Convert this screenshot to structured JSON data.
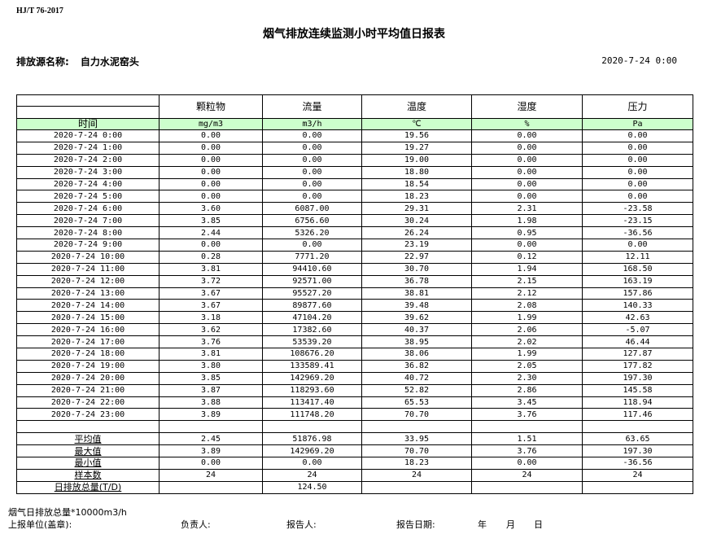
{
  "standard": "HJ/T  76-2017",
  "title": "烟气排放连续监测小时平均值日报表",
  "source_label": "排放源名称:",
  "source_name": "自力水泥窑头",
  "report_date": "2020-7-24 0:00",
  "columns": [
    "颗粒物",
    "流量",
    "温度",
    "湿度",
    "压力"
  ],
  "time_header": "时间",
  "units": [
    "mg/m3",
    "m3/h",
    "℃",
    "%",
    "Pa"
  ],
  "rows": [
    [
      "2020-7-24 0:00",
      "0.00",
      "0.00",
      "19.56",
      "0.00",
      "0.00"
    ],
    [
      "2020-7-24 1:00",
      "0.00",
      "0.00",
      "19.27",
      "0.00",
      "0.00"
    ],
    [
      "2020-7-24 2:00",
      "0.00",
      "0.00",
      "19.00",
      "0.00",
      "0.00"
    ],
    [
      "2020-7-24 3:00",
      "0.00",
      "0.00",
      "18.80",
      "0.00",
      "0.00"
    ],
    [
      "2020-7-24 4:00",
      "0.00",
      "0.00",
      "18.54",
      "0.00",
      "0.00"
    ],
    [
      "2020-7-24 5:00",
      "0.00",
      "0.00",
      "18.23",
      "0.00",
      "0.00"
    ],
    [
      "2020-7-24 6:00",
      "3.60",
      "6087.00",
      "29.31",
      "2.31",
      "-23.58"
    ],
    [
      "2020-7-24 7:00",
      "3.85",
      "6756.60",
      "30.24",
      "1.98",
      "-23.15"
    ],
    [
      "2020-7-24 8:00",
      "2.44",
      "5326.20",
      "26.24",
      "0.95",
      "-36.56"
    ],
    [
      "2020-7-24 9:00",
      "0.00",
      "0.00",
      "23.19",
      "0.00",
      "0.00"
    ],
    [
      "2020-7-24 10:00",
      "0.28",
      "7771.20",
      "22.97",
      "0.12",
      "12.11"
    ],
    [
      "2020-7-24 11:00",
      "3.81",
      "94410.60",
      "30.70",
      "1.94",
      "168.50"
    ],
    [
      "2020-7-24 12:00",
      "3.72",
      "92571.00",
      "36.78",
      "2.15",
      "163.19"
    ],
    [
      "2020-7-24 13:00",
      "3.67",
      "95527.20",
      "38.81",
      "2.12",
      "157.86"
    ],
    [
      "2020-7-24 14:00",
      "3.67",
      "89877.60",
      "39.48",
      "2.08",
      "140.33"
    ],
    [
      "2020-7-24 15:00",
      "3.18",
      "47104.20",
      "39.62",
      "1.99",
      "42.63"
    ],
    [
      "2020-7-24 16:00",
      "3.62",
      "17382.60",
      "40.37",
      "2.06",
      "-5.07"
    ],
    [
      "2020-7-24 17:00",
      "3.76",
      "53539.20",
      "38.95",
      "2.02",
      "46.44"
    ],
    [
      "2020-7-24 18:00",
      "3.81",
      "108676.20",
      "38.06",
      "1.99",
      "127.87"
    ],
    [
      "2020-7-24 19:00",
      "3.80",
      "133589.41",
      "36.82",
      "2.05",
      "177.82"
    ],
    [
      "2020-7-24 20:00",
      "3.85",
      "142969.20",
      "40.72",
      "2.30",
      "197.30"
    ],
    [
      "2020-7-24 21:00",
      "3.87",
      "118293.60",
      "52.82",
      "2.86",
      "145.58"
    ],
    [
      "2020-7-24 22:00",
      "3.88",
      "113417.40",
      "65.53",
      "3.45",
      "118.94"
    ],
    [
      "2020-7-24 23:00",
      "3.89",
      "111748.20",
      "70.70",
      "3.76",
      "117.46"
    ]
  ],
  "stats": [
    [
      "平均值",
      "2.45",
      "51876.98",
      "33.95",
      "1.51",
      "63.65"
    ],
    [
      "最大值",
      "3.89",
      "142969.20",
      "70.70",
      "3.76",
      "197.30"
    ],
    [
      "最小值",
      "0.00",
      "0.00",
      "18.23",
      "0.00",
      "-36.56"
    ],
    [
      "样本数",
      "24",
      "24",
      "24",
      "24",
      "24"
    ],
    [
      "日排放总量(T/D)",
      "",
      "124.50",
      "",
      "",
      ""
    ]
  ],
  "footer": {
    "note": "烟气日排放总量*10000m3/h",
    "unit_label": "上报单位(盖章):",
    "responsible_label": "负责人:",
    "reporter_label": "报告人:",
    "report_date_label": "报告日期:",
    "year": "年",
    "month": "月",
    "day": "日"
  }
}
